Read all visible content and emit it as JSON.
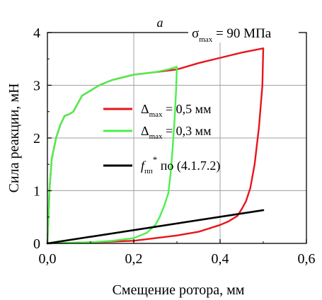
{
  "panel_label": "a",
  "chart_data": {
    "type": "line",
    "title": "",
    "annotation": {
      "prefix": "σ",
      "subscript": "max",
      "suffix": " = 90 МПа"
    },
    "xlabel": "Смещение ротора, мм",
    "ylabel": "Сила реакции, мН",
    "xlim": [
      0,
      0.6
    ],
    "ylim": [
      0,
      4
    ],
    "x_ticks": [
      0.0,
      0.2,
      0.4,
      0.6
    ],
    "x_tick_labels": [
      "0,0",
      "0,2",
      "0,4",
      "0,6"
    ],
    "y_ticks": [
      0,
      1,
      2,
      3,
      4
    ],
    "y_tick_labels": [
      "0",
      "1",
      "2",
      "3",
      "4"
    ],
    "grid": true,
    "legend_placement": "center-right",
    "series": [
      {
        "name": "Δ_max = 0,5 мм",
        "legend": {
          "prefix": "Δ",
          "subscript": "max",
          "suffix": " = 0,5 мм"
        },
        "color": "#e8141c",
        "x": [
          0.0,
          0.005,
          0.01,
          0.02,
          0.03,
          0.04,
          0.05,
          0.06,
          0.08,
          0.1,
          0.12,
          0.15,
          0.2,
          0.25,
          0.3,
          0.35,
          0.4,
          0.45,
          0.5,
          0.498,
          0.49,
          0.48,
          0.47,
          0.46,
          0.45,
          0.44,
          0.42,
          0.4,
          0.35,
          0.3,
          0.25,
          0.2,
          0.1,
          0.05,
          0.0
        ],
        "y": [
          0.0,
          1.05,
          1.6,
          2.0,
          2.25,
          2.42,
          2.45,
          2.5,
          2.8,
          2.9,
          3.0,
          3.1,
          3.2,
          3.25,
          3.3,
          3.42,
          3.52,
          3.62,
          3.7,
          3.0,
          2.2,
          1.5,
          1.05,
          0.8,
          0.65,
          0.52,
          0.42,
          0.35,
          0.22,
          0.15,
          0.1,
          0.05,
          0.02,
          0.01,
          0.0
        ]
      },
      {
        "name": "Δ_max = 0,3 мм",
        "legend": {
          "prefix": "Δ",
          "subscript": "max",
          "suffix": " = 0,3 мм"
        },
        "color": "#4cf04c",
        "x": [
          0.0,
          0.005,
          0.01,
          0.02,
          0.03,
          0.04,
          0.05,
          0.06,
          0.08,
          0.1,
          0.12,
          0.15,
          0.2,
          0.25,
          0.28,
          0.3,
          0.298,
          0.295,
          0.29,
          0.285,
          0.28,
          0.27,
          0.26,
          0.25,
          0.23,
          0.2,
          0.15,
          0.1,
          0.05,
          0.0
        ],
        "y": [
          0.0,
          1.05,
          1.6,
          2.0,
          2.25,
          2.42,
          2.45,
          2.5,
          2.8,
          2.9,
          3.0,
          3.1,
          3.2,
          3.25,
          3.3,
          3.35,
          2.9,
          2.4,
          1.8,
          1.3,
          0.95,
          0.7,
          0.5,
          0.35,
          0.2,
          0.1,
          0.05,
          0.02,
          0.01,
          0.0
        ]
      },
      {
        "name": "f_пп* по (4.1.7.2)",
        "legend": {
          "prefix": "f",
          "subscript": "пп",
          "sup": "*",
          "suffix": " по (4.1.7.2)"
        },
        "color": "#000000",
        "x": [
          0.0,
          0.5
        ],
        "y": [
          0.0,
          0.63
        ]
      }
    ]
  }
}
